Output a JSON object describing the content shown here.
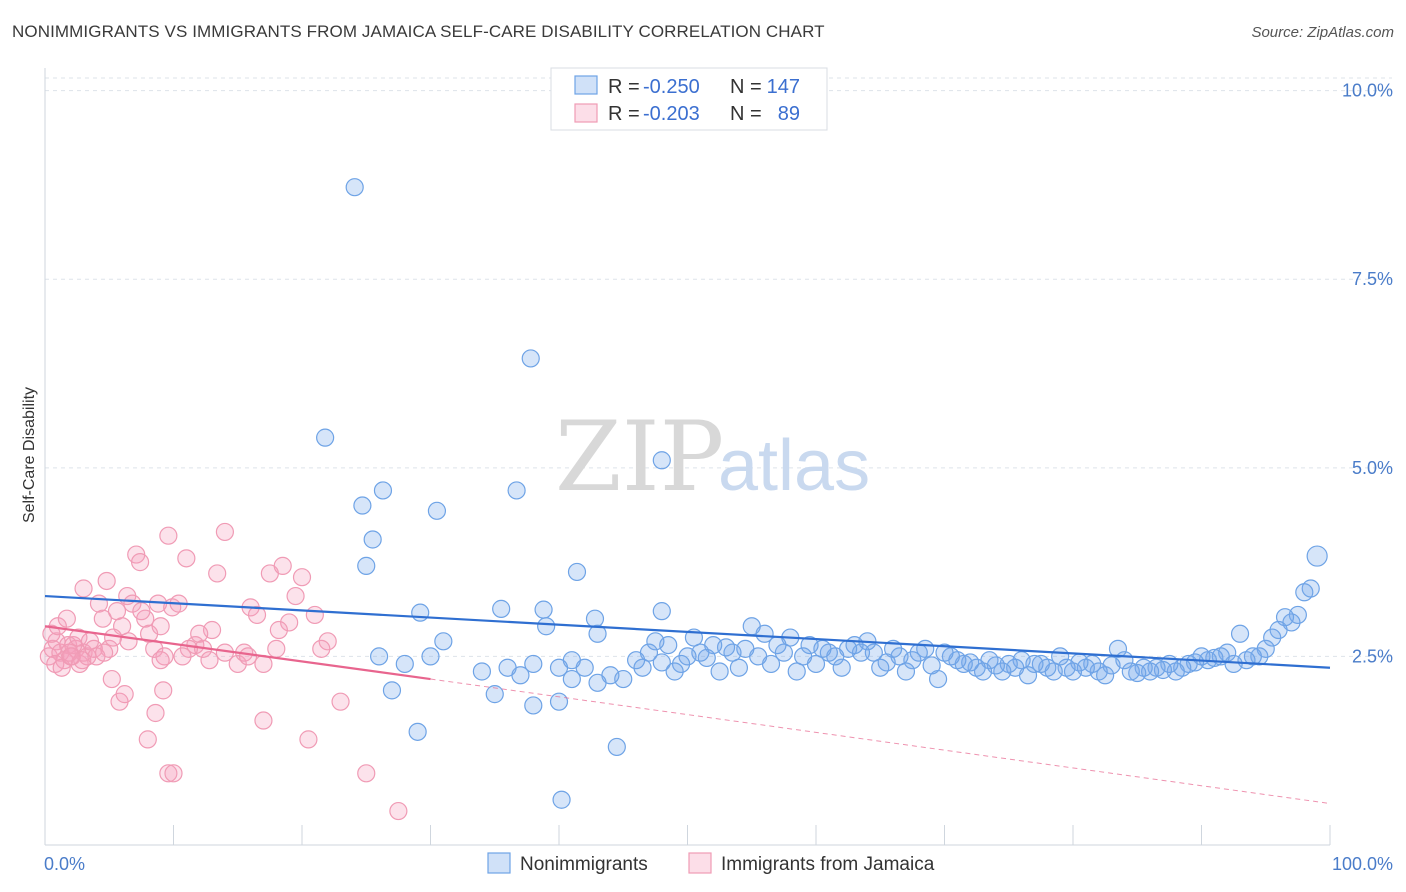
{
  "title": "NONIMMIGRANTS VS IMMIGRANTS FROM JAMAICA SELF-CARE DISABILITY CORRELATION CHART",
  "source": "Source: ZipAtlas.com",
  "watermark": {
    "zip": "ZIP",
    "atlas": "atlas"
  },
  "colors": {
    "blue": "#6ea3e6",
    "blue_line": "#2f6fd1",
    "blue_fill": "rgba(120,170,235,0.30)",
    "pink": "#f09bb5",
    "pink_line": "#e8658e",
    "pink_fill": "rgba(245,160,190,0.30)",
    "grid": "#dde3ea",
    "axis_label": "#4a7cc9"
  },
  "legend": {
    "r_label": "R =",
    "n_label": "N =",
    "rows": [
      {
        "r": "-0.250",
        "n": "147"
      },
      {
        "r": "-0.203",
        "n": "89"
      }
    ]
  },
  "bottom_legend": [
    "Nonimmigrants",
    "Immigrants from Jamaica"
  ],
  "chart_data": {
    "type": "scatter",
    "title": "NONIMMIGRANTS VS IMMIGRANTS FROM JAMAICA SELF-CARE DISABILITY CORRELATION CHART",
    "ylabel": "Self-Care Disability",
    "xlabel": "",
    "x_tick_labels": [
      "0.0%",
      "100.0%"
    ],
    "y_tick_labels": [
      "2.5%",
      "5.0%",
      "7.5%",
      "10.0%"
    ],
    "y_ticks": [
      2.5,
      5.0,
      7.5,
      10.0
    ],
    "xlim": [
      0,
      100
    ],
    "ylim": [
      0.0,
      10.3
    ],
    "grid": true,
    "legend_position": "top-center",
    "series": [
      {
        "name": "Nonimmigrants",
        "r": -0.25,
        "n": 147,
        "trend": {
          "x": [
            0,
            100
          ],
          "y": [
            3.3,
            2.35
          ],
          "style": "solid"
        },
        "points": [
          [
            24.1,
            8.72
          ],
          [
            37.8,
            6.45
          ],
          [
            21.8,
            5.4
          ],
          [
            48.0,
            5.1
          ],
          [
            26.3,
            4.7
          ],
          [
            24.7,
            4.5
          ],
          [
            36.7,
            4.7
          ],
          [
            30.5,
            4.43
          ],
          [
            25.5,
            4.05
          ],
          [
            25.0,
            3.7
          ],
          [
            41.4,
            3.62
          ],
          [
            35.5,
            3.13
          ],
          [
            38.8,
            3.12
          ],
          [
            48.0,
            3.1
          ],
          [
            29.2,
            3.08
          ],
          [
            99.0,
            3.83
          ],
          [
            98.5,
            3.4
          ],
          [
            98.0,
            3.35
          ],
          [
            97.5,
            3.05
          ],
          [
            97.0,
            2.95
          ],
          [
            96.5,
            3.02
          ],
          [
            96.0,
            2.85
          ],
          [
            95.5,
            2.75
          ],
          [
            95.0,
            2.6
          ],
          [
            94.5,
            2.5
          ],
          [
            94.0,
            2.5
          ],
          [
            93.5,
            2.45
          ],
          [
            93.0,
            2.8
          ],
          [
            92.5,
            2.4
          ],
          [
            92.0,
            2.55
          ],
          [
            91.5,
            2.5
          ],
          [
            91.0,
            2.48
          ],
          [
            90.5,
            2.45
          ],
          [
            90.0,
            2.5
          ],
          [
            89.5,
            2.42
          ],
          [
            89.0,
            2.4
          ],
          [
            88.5,
            2.35
          ],
          [
            88.0,
            2.3
          ],
          [
            87.5,
            2.4
          ],
          [
            87.0,
            2.32
          ],
          [
            86.5,
            2.35
          ],
          [
            86.0,
            2.3
          ],
          [
            85.5,
            2.35
          ],
          [
            85.0,
            2.28
          ],
          [
            84.5,
            2.3
          ],
          [
            84.0,
            2.45
          ],
          [
            83.5,
            2.6
          ],
          [
            83.0,
            2.38
          ],
          [
            82.5,
            2.25
          ],
          [
            82.0,
            2.3
          ],
          [
            81.5,
            2.4
          ],
          [
            81.0,
            2.35
          ],
          [
            80.5,
            2.42
          ],
          [
            80.0,
            2.3
          ],
          [
            79.5,
            2.35
          ],
          [
            79.0,
            2.5
          ],
          [
            78.5,
            2.3
          ],
          [
            78.0,
            2.35
          ],
          [
            77.5,
            2.4
          ],
          [
            77.0,
            2.4
          ],
          [
            76.5,
            2.25
          ],
          [
            76.0,
            2.45
          ],
          [
            75.5,
            2.35
          ],
          [
            75.0,
            2.4
          ],
          [
            74.5,
            2.3
          ],
          [
            74.0,
            2.38
          ],
          [
            73.5,
            2.45
          ],
          [
            73.0,
            2.3
          ],
          [
            72.5,
            2.35
          ],
          [
            72.0,
            2.42
          ],
          [
            71.5,
            2.4
          ],
          [
            71.0,
            2.45
          ],
          [
            70.5,
            2.5
          ],
          [
            70.0,
            2.55
          ],
          [
            69.5,
            2.2
          ],
          [
            69.0,
            2.38
          ],
          [
            68.5,
            2.6
          ],
          [
            68.0,
            2.55
          ],
          [
            67.5,
            2.45
          ],
          [
            67.0,
            2.3
          ],
          [
            66.5,
            2.5
          ],
          [
            66.0,
            2.6
          ],
          [
            65.5,
            2.42
          ],
          [
            65.0,
            2.35
          ],
          [
            64.5,
            2.55
          ],
          [
            64.0,
            2.7
          ],
          [
            63.5,
            2.55
          ],
          [
            63.0,
            2.65
          ],
          [
            62.5,
            2.6
          ],
          [
            62.0,
            2.35
          ],
          [
            61.5,
            2.5
          ],
          [
            61.0,
            2.55
          ],
          [
            60.5,
            2.6
          ],
          [
            60.0,
            2.4
          ],
          [
            59.5,
            2.65
          ],
          [
            59.0,
            2.5
          ],
          [
            58.5,
            2.3
          ],
          [
            58.0,
            2.75
          ],
          [
            57.5,
            2.55
          ],
          [
            57.0,
            2.65
          ],
          [
            56.5,
            2.4
          ],
          [
            56.0,
            2.8
          ],
          [
            55.5,
            2.5
          ],
          [
            55.0,
            2.9
          ],
          [
            54.5,
            2.6
          ],
          [
            54.0,
            2.35
          ],
          [
            53.5,
            2.55
          ],
          [
            53.0,
            2.62
          ],
          [
            52.5,
            2.3
          ],
          [
            52.0,
            2.65
          ],
          [
            51.5,
            2.48
          ],
          [
            51.0,
            2.55
          ],
          [
            50.5,
            2.75
          ],
          [
            50.0,
            2.5
          ],
          [
            49.5,
            2.4
          ],
          [
            49.0,
            2.3
          ],
          [
            48.5,
            2.65
          ],
          [
            48.0,
            2.42
          ],
          [
            47.5,
            2.7
          ],
          [
            47.0,
            2.55
          ],
          [
            46.5,
            2.35
          ],
          [
            46.0,
            2.45
          ],
          [
            45.0,
            2.2
          ],
          [
            44.0,
            2.25
          ],
          [
            43.0,
            2.15
          ],
          [
            42.0,
            2.35
          ],
          [
            41.0,
            2.45
          ],
          [
            40.0,
            2.35
          ],
          [
            39.0,
            2.9
          ],
          [
            38.0,
            2.4
          ],
          [
            37.0,
            2.25
          ],
          [
            36.0,
            2.35
          ],
          [
            35.0,
            2.0
          ],
          [
            34.0,
            2.3
          ],
          [
            31.0,
            2.7
          ],
          [
            30.0,
            2.5
          ],
          [
            28.0,
            2.4
          ],
          [
            26.0,
            2.5
          ],
          [
            27.0,
            2.05
          ],
          [
            29.0,
            1.5
          ],
          [
            38.0,
            1.85
          ],
          [
            40.0,
            1.9
          ],
          [
            41.0,
            2.2
          ],
          [
            44.5,
            1.3
          ],
          [
            40.2,
            0.6
          ],
          [
            43.0,
            2.8
          ],
          [
            42.8,
            3.0
          ]
        ]
      },
      {
        "name": "Immigrants from Jamaica",
        "r": -0.203,
        "n": 89,
        "trend": {
          "x": [
            0,
            30
          ],
          "y": [
            2.9,
            2.2
          ],
          "style": "solid",
          "extended_x": [
            30,
            100
          ],
          "extended_y": [
            2.2,
            0.55
          ],
          "extended_style": "dashed"
        },
        "points": [
          [
            0.3,
            2.5
          ],
          [
            0.6,
            2.6
          ],
          [
            0.9,
            2.7
          ],
          [
            1.2,
            2.55
          ],
          [
            1.5,
            2.45
          ],
          [
            1.8,
            2.65
          ],
          [
            2.1,
            2.5
          ],
          [
            2.4,
            2.6
          ],
          [
            2.7,
            2.4
          ],
          [
            3.0,
            2.55
          ],
          [
            3.3,
            2.5
          ],
          [
            0.5,
            2.8
          ],
          [
            1.0,
            2.9
          ],
          [
            1.7,
            3.0
          ],
          [
            2.2,
            2.65
          ],
          [
            2.6,
            2.75
          ],
          [
            0.8,
            2.4
          ],
          [
            1.3,
            2.35
          ],
          [
            1.9,
            2.55
          ],
          [
            2.9,
            2.45
          ],
          [
            3.5,
            2.7
          ],
          [
            3.8,
            2.6
          ],
          [
            4.2,
            3.2
          ],
          [
            4.5,
            3.0
          ],
          [
            4.8,
            3.5
          ],
          [
            5.0,
            2.6
          ],
          [
            5.3,
            2.75
          ],
          [
            5.6,
            3.1
          ],
          [
            6.0,
            2.9
          ],
          [
            6.4,
            3.3
          ],
          [
            6.8,
            3.2
          ],
          [
            7.1,
            3.85
          ],
          [
            7.4,
            3.75
          ],
          [
            7.8,
            3.0
          ],
          [
            8.1,
            2.8
          ],
          [
            8.5,
            2.6
          ],
          [
            8.8,
            3.2
          ],
          [
            9.0,
            2.9
          ],
          [
            9.3,
            2.5
          ],
          [
            9.6,
            4.1
          ],
          [
            9.9,
            3.15
          ],
          [
            10.4,
            3.2
          ],
          [
            11.0,
            3.8
          ],
          [
            11.7,
            2.65
          ],
          [
            12.3,
            2.6
          ],
          [
            13.0,
            2.85
          ],
          [
            14.0,
            4.15
          ],
          [
            15.0,
            2.4
          ],
          [
            15.5,
            2.55
          ],
          [
            16.0,
            3.15
          ],
          [
            16.5,
            3.05
          ],
          [
            17.0,
            2.4
          ],
          [
            17.5,
            3.6
          ],
          [
            18.0,
            2.6
          ],
          [
            18.5,
            3.7
          ],
          [
            19.0,
            2.95
          ],
          [
            20.0,
            3.55
          ],
          [
            19.5,
            3.3
          ],
          [
            21.0,
            3.05
          ],
          [
            22.0,
            2.7
          ],
          [
            23.0,
            1.9
          ],
          [
            13.4,
            3.6
          ],
          [
            5.2,
            2.2
          ],
          [
            5.8,
            1.9
          ],
          [
            6.2,
            2.0
          ],
          [
            8.0,
            1.4
          ],
          [
            8.6,
            1.75
          ],
          [
            9.2,
            2.05
          ],
          [
            9.6,
            0.95
          ],
          [
            10.0,
            0.95
          ],
          [
            14.0,
            2.55
          ],
          [
            17.0,
            1.65
          ],
          [
            20.5,
            1.4
          ],
          [
            25.0,
            0.95
          ],
          [
            27.5,
            0.45
          ],
          [
            11.2,
            2.6
          ],
          [
            12.0,
            2.8
          ],
          [
            3.0,
            3.4
          ],
          [
            4.0,
            2.5
          ],
          [
            6.5,
            2.7
          ],
          [
            7.5,
            3.1
          ],
          [
            9.0,
            2.45
          ],
          [
            10.7,
            2.5
          ],
          [
            12.8,
            2.45
          ],
          [
            15.8,
            2.5
          ],
          [
            18.2,
            2.85
          ],
          [
            21.5,
            2.6
          ],
          [
            4.6,
            2.55
          ],
          [
            2.0,
            2.5
          ]
        ]
      }
    ]
  }
}
